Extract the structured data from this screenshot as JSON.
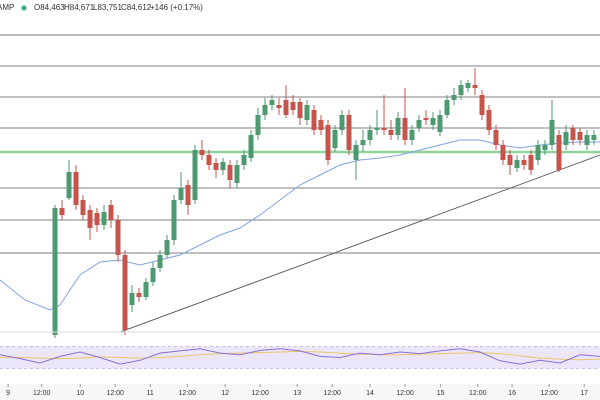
{
  "header": {
    "symbol": "AMP",
    "open": "O84,463",
    "high": "H84,671",
    "low": "L83,751",
    "close": "C84,612",
    "change": "+146 (+0.17%)"
  },
  "chart_data": {
    "type": "candlestick",
    "xlim": [
      -7.86,
      77.86
    ],
    "ylim": [
      81500,
      86860
    ],
    "xticks": [
      {
        "value": -6.7,
        "label": "9"
      },
      {
        "value": -1.9,
        "label": "12:00"
      },
      {
        "value": 3.6,
        "label": "10"
      },
      {
        "value": 8.6,
        "label": "12:00"
      },
      {
        "value": 13.6,
        "label": "11"
      },
      {
        "value": 18.9,
        "label": "12:00"
      },
      {
        "value": 24.3,
        "label": "12"
      },
      {
        "value": 29.3,
        "label": "12:00"
      },
      {
        "value": 34.6,
        "label": "13"
      },
      {
        "value": 39.6,
        "label": "12:00"
      },
      {
        "value": 45,
        "label": "14"
      },
      {
        "value": 50,
        "label": "12:00"
      },
      {
        "value": 55.1,
        "label": "15"
      },
      {
        "value": 60.4,
        "label": "12:00"
      },
      {
        "value": 65.3,
        "label": "16"
      },
      {
        "value": 70.6,
        "label": "12:00"
      },
      {
        "value": 75.6,
        "label": "17"
      }
    ],
    "open": [
      81500,
      83532,
      83692,
      84108,
      83660,
      83500,
      83452,
      83260,
      83580,
      83340,
      82780,
      81980,
      82172,
      82108,
      82348,
      82572,
      82780,
      83020,
      83660,
      83900,
      83660,
      84460,
      84380,
      84252,
      84140,
      84220,
      83932,
      84220,
      84332,
      84700,
      85020,
      85180,
      85180,
      85260,
      85228,
      85228,
      84940,
      85100,
      84940,
      84860,
      84492,
      84780,
      85020,
      84300,
      84540,
      84620,
      84780,
      84812,
      84780,
      84700,
      84972,
      84620,
      84812,
      84972,
      84860,
      84748,
      85020,
      85260,
      85340,
      85452,
      85500,
      85340,
      85100,
      84780,
      84540,
      84380,
      84172,
      84300,
      84380,
      84300,
      84460,
      84540,
      84700,
      84540,
      84812,
      84748,
      84540,
      84620
    ],
    "high": [
      83580,
      83660,
      84300,
      84220,
      83740,
      83580,
      83532,
      83580,
      83660,
      83420,
      82860,
      82300,
      82252,
      82412,
      82668,
      82860,
      83100,
      83740,
      84108,
      83980,
      84540,
      84620,
      84460,
      84332,
      84332,
      84300,
      84300,
      84460,
      84780,
      85132,
      85292,
      85340,
      85292,
      85500,
      85340,
      85292,
      85260,
      85180,
      85020,
      84940,
      84860,
      85100,
      85100,
      84620,
      84780,
      84860,
      85100,
      85340,
      84940,
      85068,
      85452,
      84860,
      85020,
      85100,
      85068,
      85100,
      85340,
      85452,
      85580,
      85580,
      85772,
      85420,
      85180,
      84860,
      84620,
      84460,
      84380,
      84380,
      84460,
      84620,
      84620,
      85260,
      84780,
      84860,
      84860,
      84812,
      84780,
      84780
    ],
    "low": [
      81452,
      83340,
      83660,
      83500,
      83340,
      83020,
      83148,
      83180,
      83212,
      82668,
      81500,
      81868,
      82028,
      82060,
      82284,
      82508,
      82732,
      82940,
      83596,
      83420,
      83596,
      84300,
      84140,
      84012,
      84060,
      83852,
      83852,
      84140,
      84268,
      84620,
      84940,
      85100,
      85020,
      84972,
      85020,
      84860,
      84860,
      84700,
      84700,
      84220,
      84428,
      84700,
      84380,
      83980,
      84428,
      84540,
      84700,
      84700,
      84620,
      84620,
      84540,
      84540,
      84748,
      84860,
      84780,
      84684,
      84972,
      85180,
      85260,
      85388,
      85340,
      84940,
      84700,
      84460,
      84220,
      84060,
      84108,
      84140,
      84060,
      84220,
      84380,
      84460,
      84108,
      84460,
      84540,
      84540,
      84460,
      84540
    ],
    "close": [
      83532,
      83420,
      84108,
      83580,
      83420,
      83212,
      83260,
      83468,
      83340,
      82780,
      81580,
      82172,
      82108,
      82348,
      82572,
      82780,
      83020,
      83660,
      83852,
      83580,
      84460,
      84380,
      84220,
      84140,
      84268,
      83980,
      84220,
      84380,
      84700,
      85020,
      85180,
      85260,
      85132,
      85020,
      85100,
      84972,
      85180,
      84780,
      84780,
      84300,
      84780,
      85020,
      84460,
      84540,
      84620,
      84780,
      84812,
      84780,
      84700,
      84972,
      84620,
      84780,
      84940,
      84940,
      84972,
      85020,
      85260,
      85340,
      85500,
      85532,
      85452,
      85020,
      84780,
      84540,
      84300,
      84220,
      84300,
      84220,
      84140,
      84540,
      84540,
      84940,
      84140,
      84748,
      84620,
      84620,
      84700,
      84700
    ],
    "colors": {
      "up": "#4d9a70",
      "down": "#c4544c"
    },
    "levels": {
      "values": [
        86300,
        85804,
        85308,
        84812,
        83852,
        83340,
        82812
      ],
      "color": "#555555"
    },
    "key_level": {
      "value": 84428,
      "color": "#8fd49a"
    },
    "trendline": {
      "x": [
        9.3,
        77.86
      ],
      "y": [
        81548,
        84380
      ],
      "color": "#555555"
    },
    "moving_average": {
      "color": "#7ea6e0",
      "x": [
        -7.86,
        -4.29,
        -0.71,
        0.71,
        3.57,
        6.43,
        9.29,
        12.14,
        15,
        17.86,
        20.71,
        23.57,
        26.43,
        29.29,
        32.14,
        35,
        37.86,
        40.71,
        43.57,
        46.43,
        49.29,
        52.14,
        55,
        57.86,
        60.71,
        63.57,
        66.43,
        69.29,
        72.14,
        75,
        77.86
      ],
      "values": [
        82380,
        82060,
        81900,
        81980,
        82460,
        82668,
        82700,
        82620,
        82700,
        82780,
        82940,
        83100,
        83212,
        83420,
        83660,
        83900,
        84060,
        84220,
        84300,
        84332,
        84380,
        84460,
        84540,
        84620,
        84620,
        84540,
        84492,
        84540,
        84572,
        84588,
        84588
      ]
    },
    "oscillator": {
      "ylim": [
        0,
        100
      ],
      "band": [
        30,
        70
      ],
      "color": "#8a6fd6",
      "signal_color": "#e8c86a",
      "band_color": "#ece6fb",
      "x": [
        -7.86,
        -5,
        -2.14,
        0.71,
        3.57,
        6.43,
        9.29,
        12.14,
        15,
        17.86,
        20.71,
        23.57,
        26.43,
        29.29,
        32.14,
        35,
        37.86,
        40.71,
        43.57,
        46.43,
        49.29,
        52.14,
        55,
        57.86,
        60.71,
        63.57,
        66.43,
        69.29,
        72.14,
        75,
        77.86
      ],
      "values": [
        55,
        48,
        40,
        52,
        60,
        50,
        38,
        45,
        58,
        62,
        66,
        58,
        55,
        63,
        66,
        62,
        52,
        50,
        58,
        55,
        60,
        57,
        62,
        66,
        60,
        44,
        38,
        45,
        40,
        55,
        52
      ],
      "signal": [
        50,
        50,
        49,
        48,
        49,
        51,
        50,
        49,
        50,
        52,
        55,
        57,
        58,
        59,
        60,
        61,
        60,
        58,
        56,
        55,
        55,
        56,
        57,
        58,
        59,
        57,
        53,
        49,
        47,
        46,
        47
      ]
    }
  }
}
